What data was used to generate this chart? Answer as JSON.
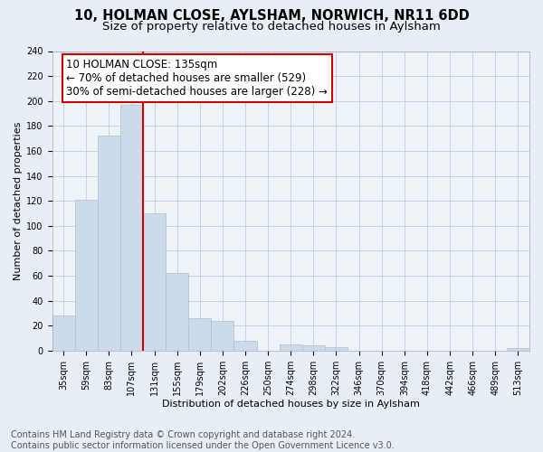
{
  "title": "10, HOLMAN CLOSE, AYLSHAM, NORWICH, NR11 6DD",
  "subtitle": "Size of property relative to detached houses in Aylsham",
  "xlabel": "Distribution of detached houses by size in Aylsham",
  "ylabel": "Number of detached properties",
  "categories": [
    "35sqm",
    "59sqm",
    "83sqm",
    "107sqm",
    "131sqm",
    "155sqm",
    "179sqm",
    "202sqm",
    "226sqm",
    "250sqm",
    "274sqm",
    "298sqm",
    "322sqm",
    "346sqm",
    "370sqm",
    "394sqm",
    "418sqm",
    "442sqm",
    "466sqm",
    "489sqm",
    "513sqm"
  ],
  "values": [
    28,
    121,
    172,
    197,
    110,
    62,
    26,
    24,
    8,
    0,
    5,
    4,
    3,
    0,
    0,
    0,
    0,
    0,
    0,
    0,
    2
  ],
  "bar_color": "#ccdaeb",
  "bar_edge_color": "#aabfd4",
  "vline_color": "#cc0000",
  "vline_x": 3.5,
  "annotation_line1": "10 HOLMAN CLOSE: 135sqm",
  "annotation_line2": "← 70% of detached houses are smaller (529)",
  "annotation_line3": "30% of semi-detached houses are larger (228) →",
  "annotation_box_color": "white",
  "annotation_box_edge_color": "#cc0000",
  "ylim_max": 240,
  "ytick_step": 20,
  "footer_line1": "Contains HM Land Registry data © Crown copyright and database right 2024.",
  "footer_line2": "Contains public sector information licensed under the Open Government Licence v3.0.",
  "background_color": "#e8eef5",
  "plot_background_color": "#eef3f8",
  "grid_color": "#c0cdd8",
  "title_fontsize": 10.5,
  "subtitle_fontsize": 9.5,
  "axis_label_fontsize": 8,
  "tick_fontsize": 7,
  "footer_fontsize": 7,
  "annotation_fontsize": 8.5
}
